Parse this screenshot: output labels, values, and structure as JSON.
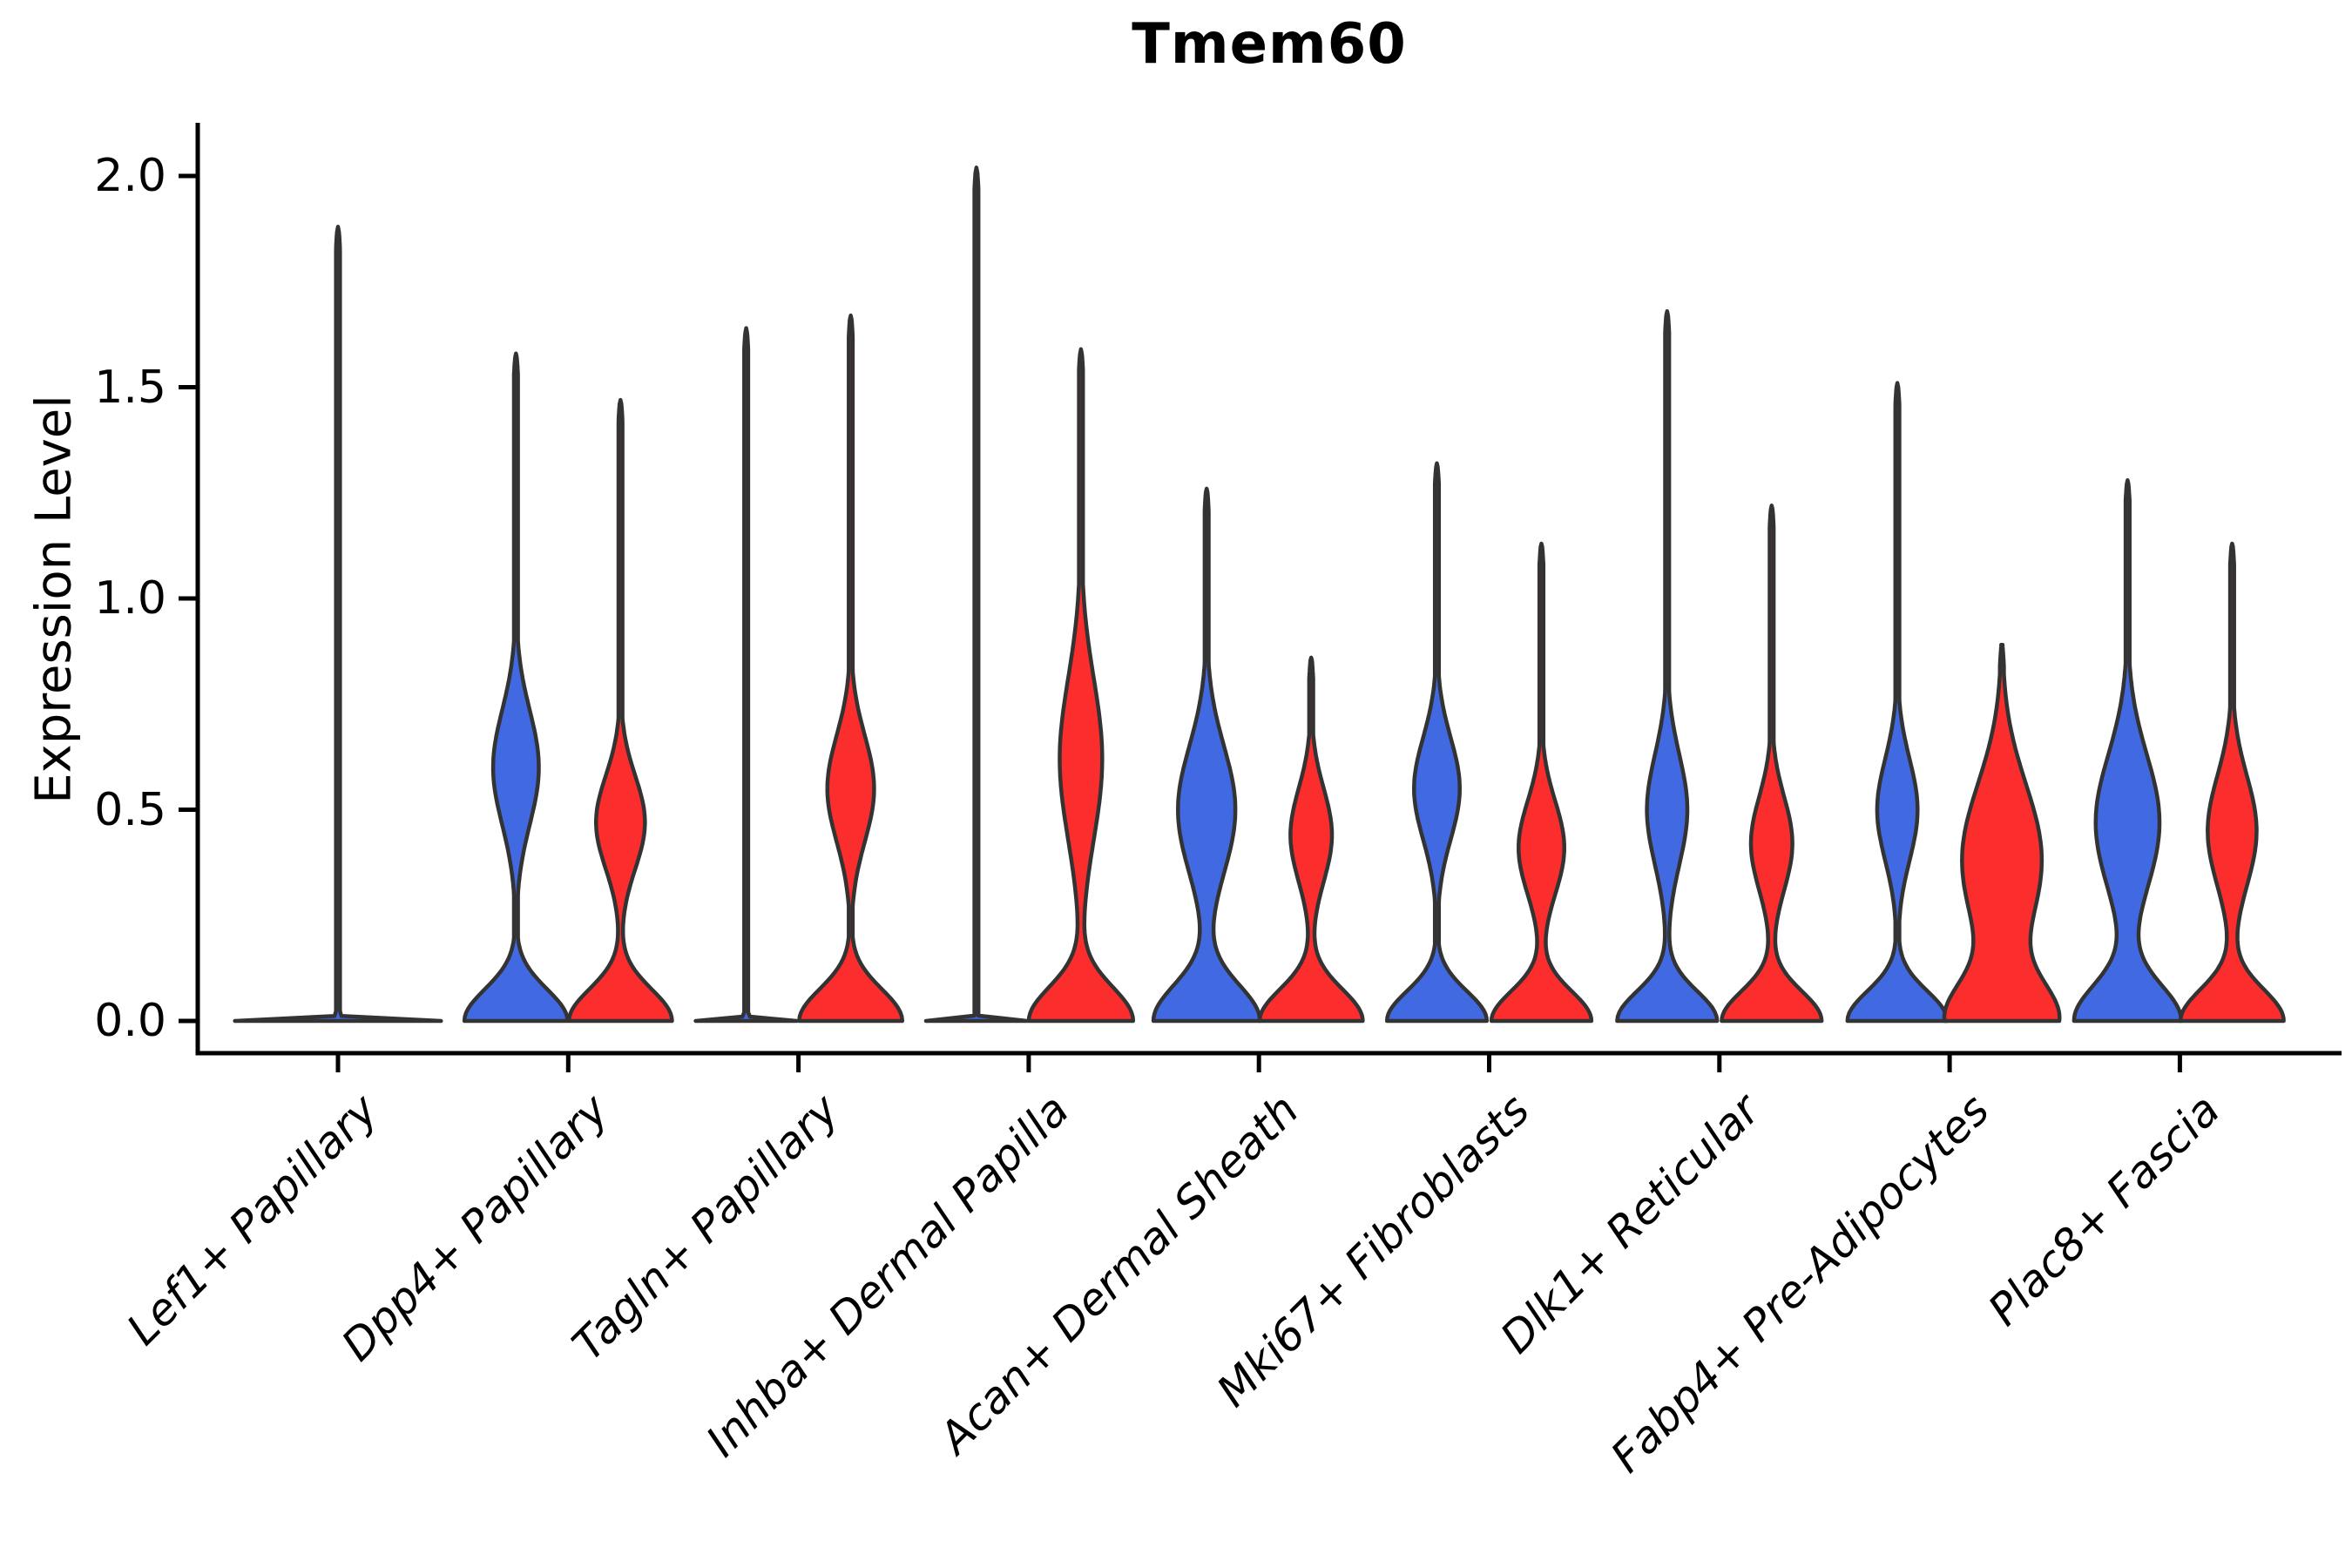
{
  "title": "Tmem60",
  "y_axis": {
    "label": "Expression Level",
    "tick_labels": [
      "0.0",
      "0.5",
      "1.0",
      "1.5",
      "2.0"
    ]
  },
  "x_axis": {
    "tick_labels": [
      "Lef1+ Papillary",
      "Dpp4+ Papillary",
      "Tagln+ Papillary",
      "Inhba+ Dermal Papilla",
      "Acan+ Dermal Sheath",
      "Mki67+ Fibroblasts",
      "Dlk1+ Reticular",
      "Fabp4+ Pre-Adipocytes",
      "Plac8+ Fascia"
    ]
  },
  "chart_data": {
    "type": "violin",
    "title": "Tmem60",
    "xlabel": "",
    "ylabel": "Expression Level",
    "ylim": [
      0.0,
      2.0
    ],
    "yticks": [
      {
        "value": 0.0,
        "label": "0.0"
      },
      {
        "value": 0.5,
        "label": "0.5"
      },
      {
        "value": 1.0,
        "label": "1.0"
      },
      {
        "value": 1.5,
        "label": "1.5"
      },
      {
        "value": 2.0,
        "label": "2.0"
      }
    ],
    "grid": false,
    "legend": "none",
    "series_colors": {
      "blue": "#4169E1",
      "red": "#FC2D2D"
    },
    "outline_color": "#333333",
    "axis_color": "#000000",
    "categories": [
      "Lef1+ Papillary",
      "Dpp4+ Papillary",
      "Tagln+ Papillary",
      "Inhba+ Dermal Papilla",
      "Acan+ Dermal Sheath",
      "Mki67+ Fibroblasts",
      "Dlk1+ Reticular",
      "Fabp4+ Pre-Adipocytes",
      "Plac8+ Fascia"
    ],
    "violins": [
      {
        "label": "Lef1+ Papillary",
        "violins": [
          {
            "series": "blue",
            "offset": 0,
            "width_scale": 2.0,
            "max": 1.88,
            "base": {
              "w": 0.97,
              "sigma": 0.0045
            },
            "bumps": []
          }
        ]
      },
      {
        "label": "Dpp4+ Papillary",
        "violins": [
          {
            "series": "blue",
            "offset": -1,
            "width_scale": 1.0,
            "max": 1.58,
            "base": {
              "w": 0.97,
              "sigma": 0.075
            },
            "bumps": [
              {
                "mu": 0.6,
                "w": 0.43,
                "sigma": 0.135
              }
            ]
          },
          {
            "series": "red",
            "offset": 1,
            "width_scale": 1.0,
            "max": 1.47,
            "base": {
              "w": 0.97,
              "sigma": 0.075
            },
            "bumps": [
              {
                "mu": 0.47,
                "w": 0.46,
                "sigma": 0.11
              }
            ]
          }
        ]
      },
      {
        "label": "Tagln+ Papillary",
        "violins": [
          {
            "series": "blue",
            "offset": -1,
            "width_scale": 1.0,
            "max": 1.64,
            "base": {
              "w": 0.95,
              "sigma": 0.0045
            },
            "bumps": []
          },
          {
            "series": "red",
            "offset": 1,
            "width_scale": 1.0,
            "max": 1.67,
            "base": {
              "w": 0.97,
              "sigma": 0.075
            },
            "bumps": [
              {
                "mu": 0.55,
                "w": 0.44,
                "sigma": 0.125
              }
            ]
          }
        ]
      },
      {
        "label": "Inhba+ Dermal Papilla",
        "violins": [
          {
            "series": "blue",
            "offset": -1,
            "width_scale": 1.0,
            "max": 2.02,
            "base": {
              "w": 0.95,
              "sigma": 0.0045
            },
            "bumps": []
          },
          {
            "series": "red",
            "offset": 1,
            "width_scale": 1.0,
            "max": 1.59,
            "base": {
              "w": 0.98,
              "sigma": 0.08
            },
            "bumps": [
              {
                "mu": 0.62,
                "w": 0.4,
                "sigma": 0.19
              }
            ]
          }
        ]
      },
      {
        "label": "Acan+ Dermal Sheath",
        "violins": [
          {
            "series": "blue",
            "offset": -1,
            "width_scale": 1.0,
            "max": 1.26,
            "base": {
              "w": 1.0,
              "sigma": 0.085
            },
            "bumps": [
              {
                "mu": 0.5,
                "w": 0.54,
                "sigma": 0.15
              }
            ]
          },
          {
            "series": "red",
            "offset": 1,
            "width_scale": 1.0,
            "max": 0.86,
            "base": {
              "w": 0.97,
              "sigma": 0.075
            },
            "bumps": [
              {
                "mu": 0.44,
                "w": 0.39,
                "sigma": 0.11
              }
            ]
          }
        ]
      },
      {
        "label": "Mki67+ Fibroblasts",
        "violins": [
          {
            "series": "blue",
            "offset": -1,
            "width_scale": 1.0,
            "max": 1.32,
            "base": {
              "w": 0.94,
              "sigma": 0.07
            },
            "bumps": [
              {
                "mu": 0.55,
                "w": 0.43,
                "sigma": 0.12
              }
            ]
          },
          {
            "series": "red",
            "offset": 1,
            "width_scale": 1.0,
            "max": 1.13,
            "base": {
              "w": 0.94,
              "sigma": 0.07
            },
            "bumps": [
              {
                "mu": 0.41,
                "w": 0.43,
                "sigma": 0.11
              }
            ]
          }
        ]
      },
      {
        "label": "Dlk1+ Reticular",
        "violins": [
          {
            "series": "blue",
            "offset": -1,
            "width_scale": 1.0,
            "max": 1.68,
            "base": {
              "w": 0.94,
              "sigma": 0.07
            },
            "bumps": [
              {
                "mu": 0.5,
                "w": 0.38,
                "sigma": 0.13
              }
            ]
          },
          {
            "series": "red",
            "offset": 1,
            "width_scale": 1.0,
            "max": 1.22,
            "base": {
              "w": 0.94,
              "sigma": 0.07
            },
            "bumps": [
              {
                "mu": 0.42,
                "w": 0.39,
                "sigma": 0.11
              }
            ]
          }
        ]
      },
      {
        "label": "Fabp4+ Pre-Adipocytes",
        "violins": [
          {
            "series": "blue",
            "offset": -1,
            "width_scale": 1.0,
            "max": 1.51,
            "base": {
              "w": 0.94,
              "sigma": 0.07
            },
            "bumps": [
              {
                "mu": 0.5,
                "w": 0.38,
                "sigma": 0.12
              }
            ]
          },
          {
            "series": "red",
            "offset": 1,
            "width_scale": 1.0,
            "max": 0.89,
            "base": {
              "w": 1.0,
              "sigma": 0.09
            },
            "bumps": [
              {
                "mu": 0.38,
                "w": 0.75,
                "sigma": 0.18
              }
            ]
          }
        ]
      },
      {
        "label": "Plac8+ Fascia",
        "violins": [
          {
            "series": "blue",
            "offset": -1,
            "width_scale": 1.0,
            "max": 1.28,
            "base": {
              "w": 1.0,
              "sigma": 0.085
            },
            "bumps": [
              {
                "mu": 0.47,
                "w": 0.6,
                "sigma": 0.16
              }
            ]
          },
          {
            "series": "red",
            "offset": 1,
            "width_scale": 1.0,
            "max": 1.13,
            "base": {
              "w": 0.97,
              "sigma": 0.075
            },
            "bumps": [
              {
                "mu": 0.45,
                "w": 0.46,
                "sigma": 0.13
              }
            ]
          }
        ]
      }
    ]
  }
}
